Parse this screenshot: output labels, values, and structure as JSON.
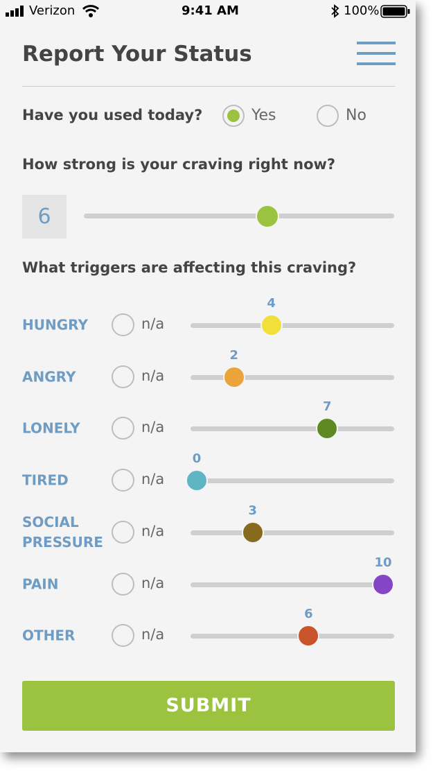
{
  "status_bar": {
    "carrier": "Verizon",
    "time": "9:41 AM",
    "battery": "100%"
  },
  "header": {
    "title": "Report Your Status"
  },
  "used_today": {
    "question": "Have you used today?",
    "options": [
      "Yes",
      "No"
    ],
    "selected_option": 0,
    "selected_color": "#9bc33f"
  },
  "craving": {
    "question": "How strong is your craving right now?",
    "value": 6,
    "color": "#9bc33f"
  },
  "slider_range": [
    0,
    10
  ],
  "triggers": {
    "question": "What triggers are affecting this craving?",
    "na_label": "n/a",
    "items": [
      {
        "label": "HUNGRY",
        "value": 4,
        "color": "#f2e03a"
      },
      {
        "label": "ANGRY",
        "value": 2,
        "color": "#eba43a"
      },
      {
        "label": "LONELY",
        "value": 7,
        "color": "#5f8a23"
      },
      {
        "label": "TIRED",
        "value": 0,
        "color": "#5fb4c4"
      },
      {
        "label": "SOCIAL PRESSURE",
        "value": 3,
        "color": "#866a1e"
      },
      {
        "label": "PAIN",
        "value": 10,
        "color": "#8446c4"
      },
      {
        "label": "OTHER",
        "value": 6,
        "color": "#c9532a"
      }
    ]
  },
  "submit": "SUBMIT"
}
